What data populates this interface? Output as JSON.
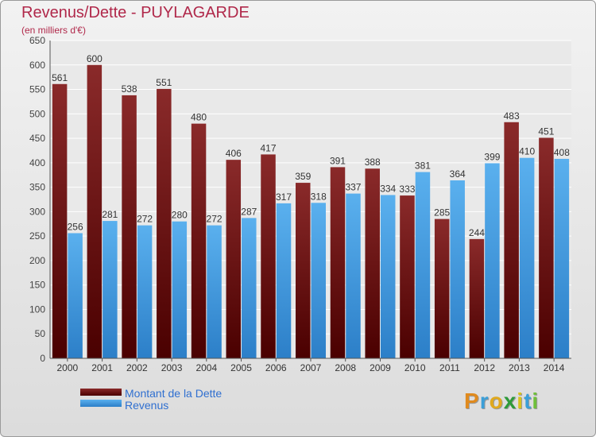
{
  "title": "Revenus/Dette - PUYLAGARDE",
  "subtitle": "(en milliers d'€)",
  "logo": "Proxiti",
  "colors": {
    "dette": "#7a1a1a",
    "revenus": "#4da3e4"
  },
  "chart_data": {
    "type": "bar",
    "categories": [
      "2000",
      "2001",
      "2002",
      "2003",
      "2004",
      "2005",
      "2006",
      "2007",
      "2008",
      "2009",
      "2010",
      "2011",
      "2012",
      "2013",
      "2014"
    ],
    "series": [
      {
        "name": "Montant de la Dette",
        "values": [
          561,
          600,
          538,
          551,
          480,
          406,
          417,
          359,
          391,
          388,
          333,
          285,
          244,
          483,
          451
        ]
      },
      {
        "name": "Revenus",
        "values": [
          256,
          281,
          272,
          280,
          272,
          287,
          317,
          318,
          337,
          334,
          381,
          364,
          399,
          410,
          408
        ]
      }
    ],
    "ylim": [
      0,
      650
    ],
    "yticks": [
      0,
      50,
      100,
      150,
      200,
      250,
      300,
      350,
      400,
      450,
      500,
      550,
      600,
      650
    ],
    "grid": true,
    "legend": "bottom-left"
  }
}
